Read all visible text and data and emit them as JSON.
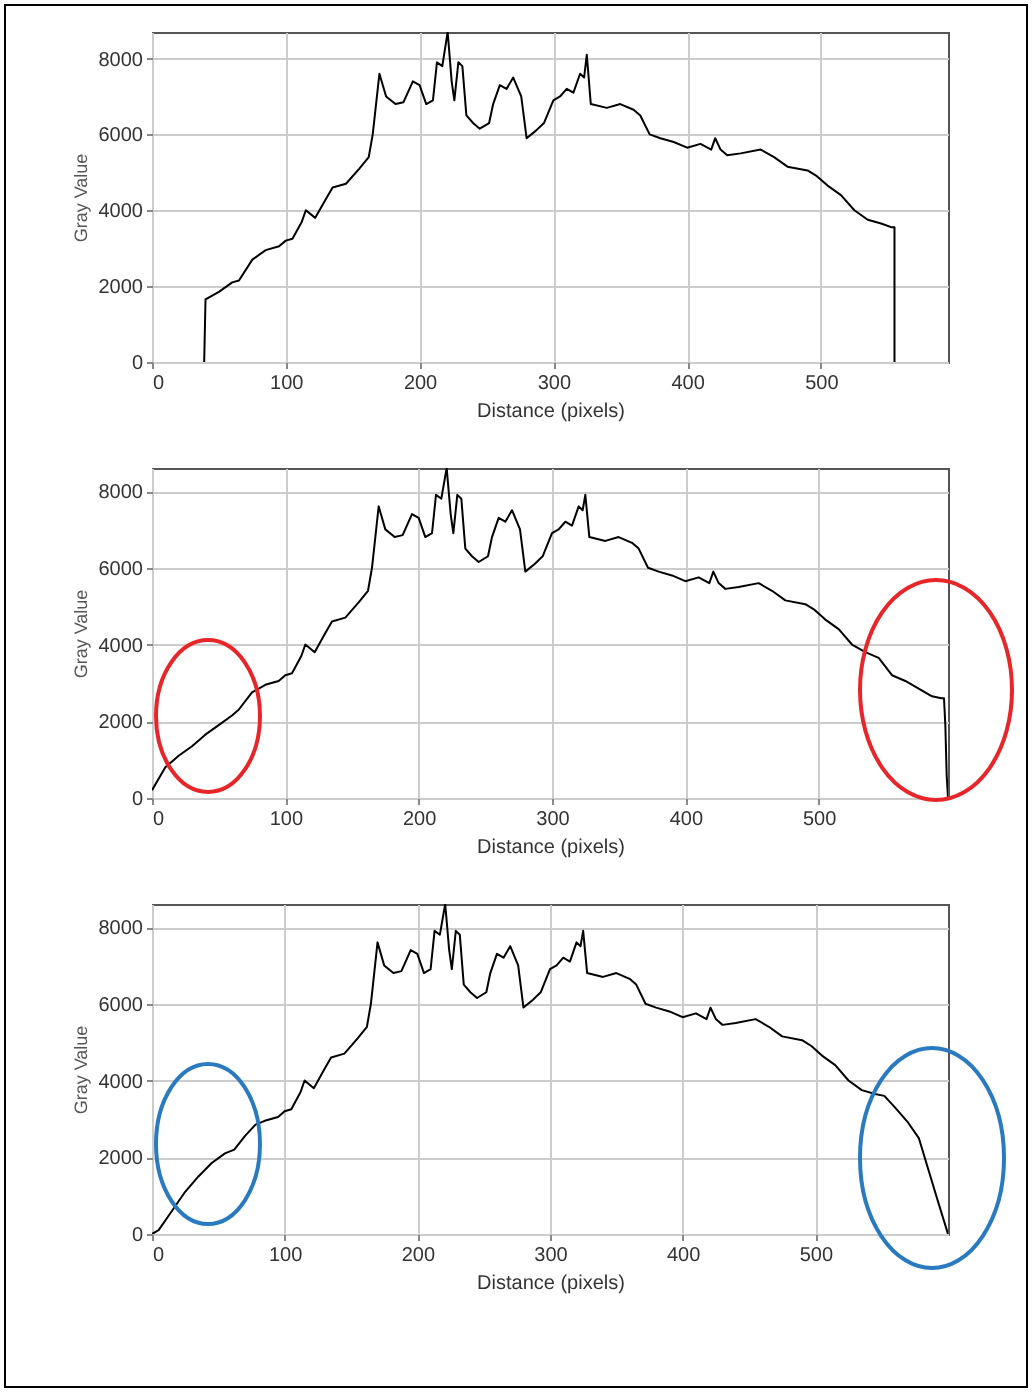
{
  "chart_data": [
    {
      "type": "line",
      "xlabel": "Distance (pixels)",
      "ylabel": "Gray Value",
      "xlim": [
        0,
        595
      ],
      "ylim": [
        0,
        8700
      ],
      "xticks": [
        0,
        100,
        200,
        300,
        400,
        500
      ],
      "yticks": [
        0,
        2000,
        4000,
        6000,
        8000
      ],
      "grid": true,
      "series": [
        {
          "color": "#000000",
          "x": [
            39,
            40,
            50,
            60,
            65,
            75,
            85,
            95,
            100,
            105,
            112,
            115,
            122,
            130,
            135,
            145,
            155,
            162,
            165,
            170,
            175,
            182,
            188,
            195,
            200,
            205,
            210,
            213,
            217,
            221,
            224,
            226,
            229,
            232,
            235,
            240,
            245,
            252,
            255,
            260,
            265,
            270,
            276,
            280,
            287,
            293,
            300,
            305,
            310,
            315,
            320,
            323,
            325,
            328,
            340,
            350,
            360,
            365,
            372,
            380,
            390,
            400,
            410,
            418,
            421,
            425,
            430,
            440,
            455,
            465,
            475,
            490,
            497,
            505,
            515,
            525,
            535,
            545,
            553,
            555,
            555
          ],
          "values": [
            0,
            1650,
            1850,
            2100,
            2150,
            2700,
            2950,
            3050,
            3200,
            3250,
            3700,
            4000,
            3800,
            4300,
            4600,
            4700,
            5100,
            5400,
            6000,
            7600,
            7000,
            6800,
            6850,
            7400,
            7300,
            6800,
            6900,
            7900,
            7800,
            8700,
            7400,
            6900,
            7900,
            7800,
            6500,
            6300,
            6150,
            6300,
            6800,
            7300,
            7200,
            7500,
            7000,
            5900,
            6100,
            6300,
            6900,
            7000,
            7200,
            7100,
            7600,
            7500,
            8100,
            6800,
            6700,
            6800,
            6650,
            6500,
            6000,
            5900,
            5800,
            5650,
            5750,
            5600,
            5900,
            5600,
            5450,
            5500,
            5600,
            5400,
            5150,
            5050,
            4900,
            4650,
            4400,
            4000,
            3750,
            3650,
            3550,
            3550,
            0
          ]
        }
      ]
    },
    {
      "type": "line",
      "xlabel": "Distance (pixels)",
      "ylabel": "Gray Value",
      "xlim": [
        0,
        597
      ],
      "ylim": [
        0,
        8600
      ],
      "xticks": [
        0,
        100,
        200,
        300,
        400,
        500
      ],
      "yticks": [
        0,
        2000,
        4000,
        6000,
        8000
      ],
      "grid": true,
      "series": [
        {
          "color": "#000000",
          "x": [
            0,
            10,
            20,
            30,
            40,
            50,
            60,
            65,
            75,
            85,
            95,
            100,
            105,
            112,
            115,
            122,
            130,
            135,
            145,
            155,
            162,
            165,
            170,
            175,
            182,
            188,
            195,
            200,
            205,
            210,
            213,
            217,
            221,
            224,
            226,
            229,
            232,
            235,
            240,
            245,
            252,
            255,
            260,
            265,
            270,
            276,
            280,
            287,
            293,
            300,
            305,
            310,
            315,
            320,
            323,
            325,
            328,
            340,
            350,
            360,
            365,
            372,
            380,
            390,
            400,
            410,
            418,
            421,
            425,
            430,
            440,
            455,
            465,
            475,
            490,
            497,
            505,
            515,
            525,
            535,
            545,
            555,
            565,
            575,
            585,
            592,
            594,
            595,
            596,
            597
          ],
          "values": [
            200,
            800,
            1100,
            1350,
            1650,
            1900,
            2150,
            2300,
            2750,
            2950,
            3050,
            3200,
            3250,
            3700,
            4000,
            3800,
            4300,
            4600,
            4700,
            5100,
            5400,
            6000,
            7600,
            7000,
            6800,
            6850,
            7400,
            7300,
            6800,
            6900,
            7900,
            7800,
            8600,
            7400,
            6900,
            7900,
            7800,
            6500,
            6300,
            6150,
            6300,
            6800,
            7300,
            7200,
            7500,
            7000,
            5900,
            6100,
            6300,
            6900,
            7000,
            7200,
            7100,
            7600,
            7500,
            7900,
            6800,
            6700,
            6800,
            6650,
            6500,
            6000,
            5900,
            5800,
            5650,
            5750,
            5600,
            5900,
            5600,
            5450,
            5500,
            5600,
            5400,
            5150,
            5050,
            4900,
            4650,
            4400,
            4000,
            3800,
            3650,
            3200,
            3050,
            2850,
            2650,
            2600,
            2600,
            1900,
            600,
            0
          ]
        }
      ]
    },
    {
      "type": "line",
      "xlabel": "Distance (pixels)",
      "ylabel": "Gray Value",
      "xlim": [
        0,
        600
      ],
      "ylim": [
        0,
        8600
      ],
      "xticks": [
        0,
        100,
        200,
        300,
        400,
        500
      ],
      "yticks": [
        0,
        2000,
        4000,
        6000,
        8000
      ],
      "grid": true,
      "series": [
        {
          "color": "#000000",
          "x": [
            0,
            5,
            15,
            25,
            35,
            45,
            55,
            62,
            70,
            78,
            85,
            95,
            100,
            105,
            112,
            115,
            122,
            130,
            135,
            145,
            155,
            162,
            165,
            170,
            175,
            182,
            188,
            195,
            200,
            205,
            210,
            213,
            217,
            221,
            224,
            226,
            229,
            232,
            235,
            240,
            245,
            252,
            255,
            260,
            265,
            270,
            276,
            280,
            287,
            293,
            300,
            305,
            310,
            315,
            320,
            323,
            325,
            328,
            340,
            350,
            360,
            365,
            372,
            380,
            390,
            400,
            410,
            418,
            421,
            425,
            430,
            440,
            455,
            465,
            475,
            490,
            497,
            505,
            515,
            525,
            535,
            545,
            552,
            560,
            570,
            578,
            585,
            592,
            600
          ],
          "values": [
            0,
            100,
            600,
            1100,
            1500,
            1850,
            2100,
            2200,
            2550,
            2850,
            2950,
            3050,
            3200,
            3250,
            3700,
            4000,
            3800,
            4300,
            4600,
            4700,
            5100,
            5400,
            6000,
            7600,
            7000,
            6800,
            6850,
            7400,
            7300,
            6800,
            6900,
            7900,
            7800,
            8600,
            7400,
            6900,
            7900,
            7800,
            6500,
            6300,
            6150,
            6300,
            6800,
            7300,
            7200,
            7500,
            7000,
            5900,
            6100,
            6300,
            6900,
            7000,
            7200,
            7100,
            7600,
            7500,
            7900,
            6800,
            6700,
            6800,
            6650,
            6500,
            6000,
            5900,
            5800,
            5650,
            5750,
            5600,
            5900,
            5600,
            5450,
            5500,
            5600,
            5400,
            5150,
            5050,
            4900,
            4650,
            4400,
            4000,
            3750,
            3650,
            3600,
            3300,
            2900,
            2500,
            1700,
            900,
            0
          ]
        }
      ]
    }
  ]
}
